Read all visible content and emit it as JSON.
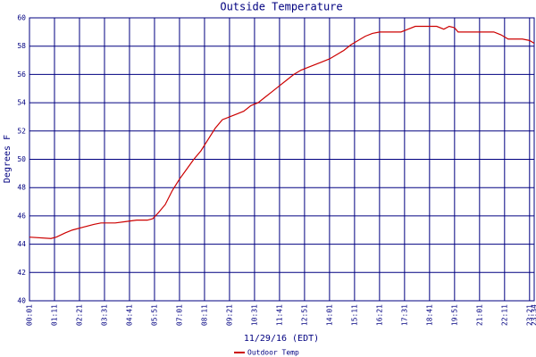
{
  "chart_data": {
    "type": "line",
    "title": "Outside Temperature",
    "y_label": "Degrees F",
    "x_label": "11/29/16 (EDT)",
    "x": [
      0,
      60,
      75,
      100,
      120,
      150,
      180,
      200,
      240,
      270,
      300,
      330,
      345,
      360,
      380,
      400,
      420,
      440,
      460,
      480,
      500,
      520,
      540,
      560,
      580,
      600,
      620,
      640,
      660,
      680,
      700,
      720,
      740,
      760,
      780,
      800,
      820,
      840,
      860,
      880,
      900,
      920,
      940,
      960,
      980,
      1040,
      1060,
      1080,
      1140,
      1160,
      1175,
      1190,
      1200,
      1300,
      1320,
      1340,
      1380,
      1400,
      1413
    ],
    "series": [
      {
        "name": "Outdoor Temp",
        "color": "#cc0000",
        "values": [
          44.5,
          44.4,
          44.5,
          44.8,
          45.0,
          45.2,
          45.4,
          45.5,
          45.5,
          45.6,
          45.7,
          45.7,
          45.8,
          46.2,
          46.8,
          47.8,
          48.6,
          49.3,
          50.0,
          50.6,
          51.4,
          52.2,
          52.8,
          53.0,
          53.2,
          53.4,
          53.8,
          54.0,
          54.4,
          54.8,
          55.2,
          55.6,
          56.0,
          56.3,
          56.5,
          56.7,
          56.9,
          57.1,
          57.4,
          57.7,
          58.1,
          58.4,
          58.7,
          58.9,
          59.0,
          59.0,
          59.2,
          59.4,
          59.4,
          59.2,
          59.4,
          59.3,
          59.0,
          59.0,
          58.8,
          58.5,
          58.5,
          58.4,
          58.2
        ]
      }
    ],
    "xlim": [
      0,
      1413
    ],
    "xticks": [
      {
        "value": 0,
        "label": "00:01"
      },
      {
        "value": 70,
        "label": "01:11"
      },
      {
        "value": 140,
        "label": "02:21"
      },
      {
        "value": 210,
        "label": "03:31"
      },
      {
        "value": 280,
        "label": "04:41"
      },
      {
        "value": 350,
        "label": "05:51"
      },
      {
        "value": 420,
        "label": "07:01"
      },
      {
        "value": 490,
        "label": "08:11"
      },
      {
        "value": 560,
        "label": "09:21"
      },
      {
        "value": 630,
        "label": "10:31"
      },
      {
        "value": 700,
        "label": "11:41"
      },
      {
        "value": 770,
        "label": "12:51"
      },
      {
        "value": 840,
        "label": "14:01"
      },
      {
        "value": 910,
        "label": "15:11"
      },
      {
        "value": 980,
        "label": "16:21"
      },
      {
        "value": 1050,
        "label": "17:31"
      },
      {
        "value": 1120,
        "label": "18:41"
      },
      {
        "value": 1190,
        "label": "19:51"
      },
      {
        "value": 1260,
        "label": "21:01"
      },
      {
        "value": 1330,
        "label": "22:11"
      },
      {
        "value": 1400,
        "label": "23:21"
      },
      {
        "value": 1413,
        "label": "23:34"
      }
    ],
    "ylim": [
      40,
      60
    ],
    "yticks": [
      40,
      42,
      44,
      46,
      48,
      50,
      52,
      54,
      56,
      58,
      60
    ],
    "grid": true
  }
}
